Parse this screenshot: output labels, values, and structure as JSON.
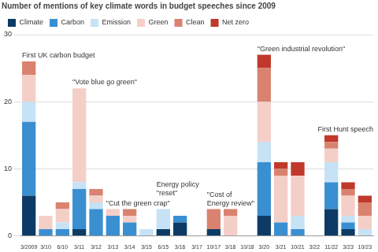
{
  "chart_data": {
    "type": "bar",
    "subtitle": "Number of mentions of key climate words in budget speeches since 2009",
    "categories": [
      "3/2009",
      "3/10",
      "6/10",
      "3/11",
      "3/12",
      "3/13",
      "3/14",
      "3/15",
      "6/15",
      "3/16",
      "3/17",
      "10/17",
      "3/18",
      "10/18",
      "3/20",
      "3/21",
      "10/21",
      "3/22",
      "11/22",
      "3/23",
      "10/23"
    ],
    "series": [
      {
        "name": "Climate",
        "color": "#0d3b66",
        "values": [
          6,
          0,
          0,
          1,
          0,
          0,
          0,
          0,
          1,
          2,
          0,
          1,
          0,
          0,
          3,
          0,
          0,
          0,
          4,
          1,
          0
        ]
      },
      {
        "name": "Carbon",
        "color": "#3a8fd1",
        "values": [
          11,
          1,
          1,
          6,
          4,
          3,
          2,
          0,
          0,
          1,
          0,
          0,
          0,
          0,
          8,
          2,
          1,
          0,
          4,
          1,
          0
        ]
      },
      {
        "name": "Emission",
        "color": "#c6e2f5",
        "values": [
          3,
          0,
          1,
          1,
          1,
          0,
          0,
          1,
          3,
          0,
          0,
          0,
          0,
          0,
          3,
          0,
          2,
          0,
          3,
          1,
          1
        ]
      },
      {
        "name": "Green",
        "color": "#f4cfc8",
        "values": [
          4,
          2,
          2,
          14,
          1,
          1,
          1,
          0,
          0,
          0,
          0,
          0,
          3,
          0,
          6,
          7,
          6,
          0,
          2,
          3,
          2
        ]
      },
      {
        "name": "Clean",
        "color": "#d9826f",
        "values": [
          2,
          0,
          1,
          0,
          1,
          0,
          1,
          0,
          0,
          0,
          0,
          3,
          1,
          0,
          5,
          1,
          0,
          0,
          1,
          1,
          2
        ]
      },
      {
        "name": "Net zero",
        "color": "#c0392b",
        "values": [
          0,
          0,
          0,
          0,
          0,
          0,
          0,
          0,
          0,
          0,
          0,
          0,
          0,
          0,
          2,
          1,
          2,
          0,
          1,
          1,
          1
        ]
      }
    ],
    "annotations": [
      {
        "text": "First UK carbon budget",
        "x": "3/2009"
      },
      {
        "text": "\"Vote blue go green\"",
        "x": "3/11"
      },
      {
        "text": "\"Cut the green crap\"",
        "x": "3/13"
      },
      {
        "text": "Energy policy\n\"reset\"",
        "x": "6/15"
      },
      {
        "text": "\"Cost of\nEnergy review\"",
        "x": "10/17"
      },
      {
        "text": "\"Green industrial revolution\"",
        "x": "3/20"
      },
      {
        "text": "First Hunt speech",
        "x": "11/22"
      }
    ],
    "ylim": [
      0,
      30
    ],
    "yticks": [
      0,
      10,
      20,
      30
    ],
    "stacked": true,
    "grid": true,
    "legend": "top"
  }
}
